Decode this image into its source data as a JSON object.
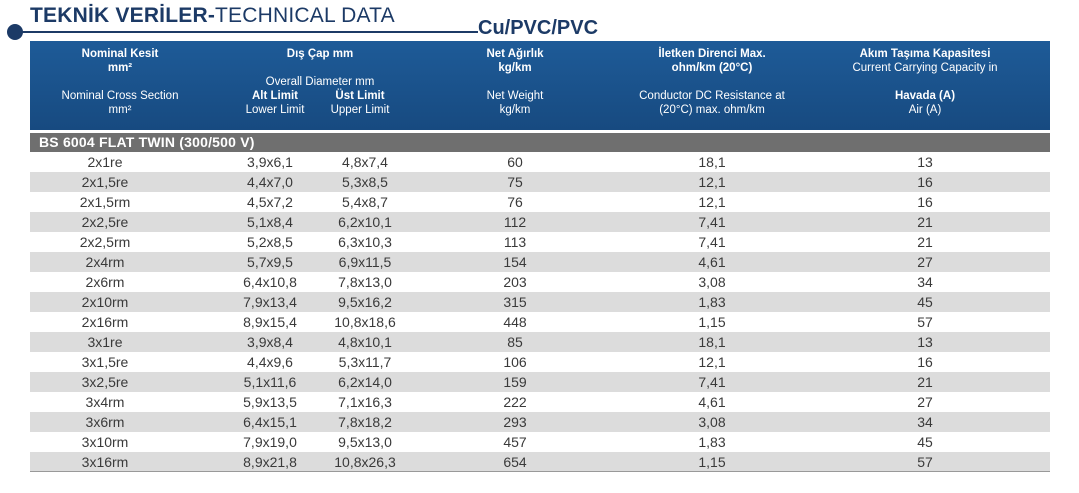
{
  "header": {
    "title_bold": "TEKNİK VERİLER-",
    "title_regular": "TECHNICAL DATA",
    "subtitle": "Cu/PVC/PVC"
  },
  "columns": {
    "nominal_tr": "Nominal Kesit",
    "nominal_tr_unit": "mm²",
    "nominal_en": "Nominal Cross Section",
    "nominal_en_unit": "mm²",
    "diameter_tr": "Dış Çap mm",
    "diameter_en": "Overall Diameter mm",
    "lower_tr": "Alt Limit",
    "lower_en": "Lower Limit",
    "upper_tr": "Üst Limit",
    "upper_en": "Upper Limit",
    "weight_tr": "Net Ağırlık",
    "weight_tr_unit": "kg/km",
    "weight_en": "Net Weight",
    "weight_en_unit": "kg/km",
    "resistance_tr": "İletken Direnci Max.",
    "resistance_tr_unit": "ohm/km (20°C)",
    "resistance_en": "Conductor DC Resistance at",
    "resistance_en_unit": "(20°C) max. ohm/km",
    "current_tr": "Akım Taşıma Kapasitesi",
    "current_en": "Current Carrying Capacity in",
    "air_tr": "Havada (A)",
    "air_en": "Air (A)"
  },
  "section_title": "BS 6004 FLAT TWIN (300/500 V)",
  "rows": [
    {
      "section": "2x1re",
      "lower": "3,9x6,1",
      "upper": "4,8x7,4",
      "weight": "60",
      "resistance": "18,1",
      "current": "13"
    },
    {
      "section": "2x1,5re",
      "lower": "4,4x7,0",
      "upper": "5,3x8,5",
      "weight": "75",
      "resistance": "12,1",
      "current": "16"
    },
    {
      "section": "2x1,5rm",
      "lower": "4,5x7,2",
      "upper": "5,4x8,7",
      "weight": "76",
      "resistance": "12,1",
      "current": "16"
    },
    {
      "section": "2x2,5re",
      "lower": "5,1x8,4",
      "upper": "6,2x10,1",
      "weight": "112",
      "resistance": "7,41",
      "current": "21"
    },
    {
      "section": "2x2,5rm",
      "lower": "5,2x8,5",
      "upper": "6,3x10,3",
      "weight": "113",
      "resistance": "7,41",
      "current": "21"
    },
    {
      "section": "2x4rm",
      "lower": "5,7x9,5",
      "upper": "6,9x11,5",
      "weight": "154",
      "resistance": "4,61",
      "current": "27"
    },
    {
      "section": "2x6rm",
      "lower": "6,4x10,8",
      "upper": "7,8x13,0",
      "weight": "203",
      "resistance": "3,08",
      "current": "34"
    },
    {
      "section": "2x10rm",
      "lower": "7,9x13,4",
      "upper": "9,5x16,2",
      "weight": "315",
      "resistance": "1,83",
      "current": "45"
    },
    {
      "section": "2x16rm",
      "lower": "8,9x15,4",
      "upper": "10,8x18,6",
      "weight": "448",
      "resistance": "1,15",
      "current": "57"
    },
    {
      "section": "3x1re",
      "lower": "3,9x8,4",
      "upper": "4,8x10,1",
      "weight": "85",
      "resistance": "18,1",
      "current": "13"
    },
    {
      "section": "3x1,5re",
      "lower": "4,4x9,6",
      "upper": "5,3x11,7",
      "weight": "106",
      "resistance": "12,1",
      "current": "16"
    },
    {
      "section": "3x2,5re",
      "lower": "5,1x11,6",
      "upper": "6,2x14,0",
      "weight": "159",
      "resistance": "7,41",
      "current": "21"
    },
    {
      "section": "3x4rm",
      "lower": "5,9x13,5",
      "upper": "7,1x16,3",
      "weight": "222",
      "resistance": "4,61",
      "current": "27"
    },
    {
      "section": "3x6rm",
      "lower": "6,4x15,1",
      "upper": "7,8x18,2",
      "weight": "293",
      "resistance": "3,08",
      "current": "34"
    },
    {
      "section": "3x10rm",
      "lower": "7,9x19,0",
      "upper": "9,5x13,0",
      "weight": "457",
      "resistance": "1,83",
      "current": "45"
    },
    {
      "section": "3x16rm",
      "lower": "8,9x21,8",
      "upper": "10,8x26,3",
      "weight": "654",
      "resistance": "1,15",
      "current": "57"
    }
  ]
}
